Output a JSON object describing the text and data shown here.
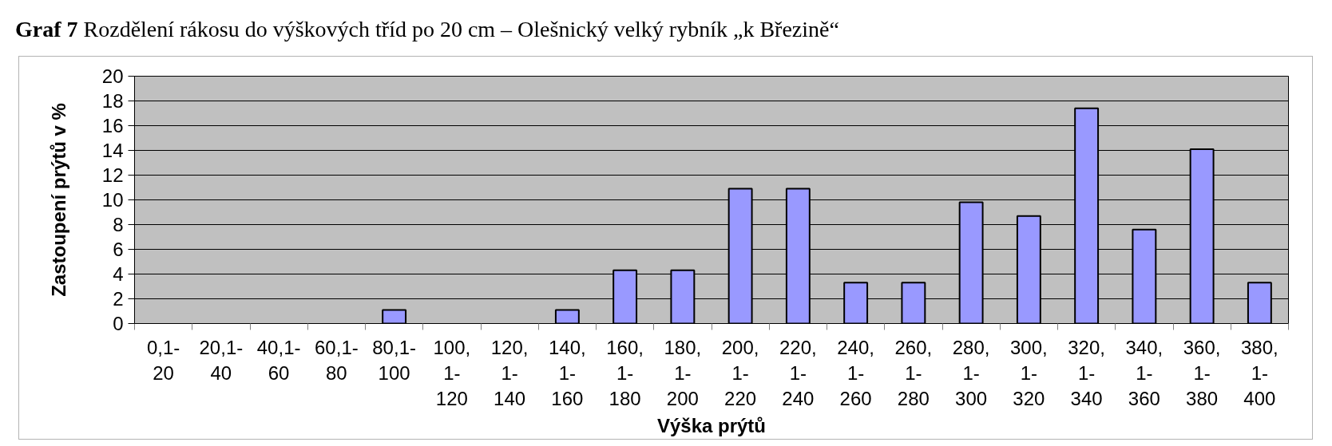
{
  "chart_data": {
    "type": "bar",
    "title": "Graf 7 Rozdělení rákosu do výškových tříd po 20 cm – Olešnický velký rybník „k Březině“",
    "xlabel": "Výška prýtů",
    "ylabel": "Zastoupení prýtů v %",
    "categories": [
      "0,1-20",
      "20,1-40",
      "40,1-60",
      "60,1-80",
      "80,1-100",
      "100,1-120",
      "120,1-140",
      "140,1-160",
      "160,1-180",
      "180,1-200",
      "200,1-220",
      "220,1-240",
      "240,1-260",
      "260,1-280",
      "280,1-300",
      "300,1-320",
      "320,1-340",
      "340,1-360",
      "360,1-380",
      "380,1-400"
    ],
    "series": [
      {
        "color": "#9999ff",
        "values": [
          0,
          0,
          0,
          0,
          1.1,
          0,
          0,
          1.1,
          4.3,
          4.3,
          10.9,
          10.9,
          3.3,
          3.3,
          9.8,
          8.7,
          17.4,
          7.6,
          14.1,
          3.3
        ]
      }
    ],
    "ylim": [
      0,
      20
    ],
    "yticks": [
      0,
      2,
      4,
      6,
      8,
      10,
      12,
      14,
      16,
      18,
      20
    ],
    "grid": "y"
  }
}
